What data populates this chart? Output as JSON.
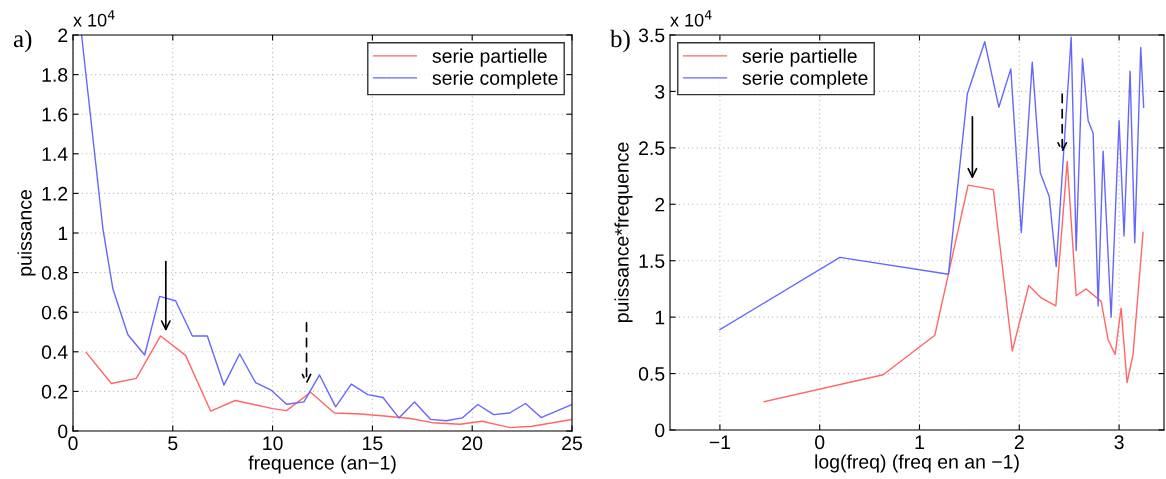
{
  "chart_data": [
    {
      "type": "line",
      "xlabel": "frequence (an−1)",
      "ylabel": "puissance",
      "annotations": [
        "a)",
        "x 10$^{4}$"
      ],
      "xlim": [
        0,
        25
      ],
      "xticks": [
        0,
        5,
        10,
        15,
        20,
        25
      ],
      "ylim": [
        0,
        2
      ],
      "yticks": [
        0,
        0.2,
        0.4,
        0.6,
        0.8,
        1,
        1.2,
        1.4,
        1.6,
        1.8,
        2
      ],
      "grid": true,
      "legend": "top right",
      "line_style": "solid",
      "marker": "none",
      "series": [
        {
          "name": "serie partielle",
          "color": "#ff6666",
          "x": [
            0.67,
            1.92,
            3.17,
            4.39,
            5.64,
            6.9,
            8.13,
            10.0,
            10.7,
            11.9,
            13.1,
            14.4,
            15.6,
            16.9,
            18.0,
            19.4,
            20.5,
            21.9,
            23.0,
            25.0
          ],
          "values": [
            0.396,
            0.24,
            0.266,
            0.48,
            0.382,
            0.1,
            0.154,
            0.113,
            0.103,
            0.196,
            0.091,
            0.086,
            0.076,
            0.063,
            0.042,
            0.034,
            0.049,
            0.017,
            0.024,
            0.058
          ]
        },
        {
          "name": "serie complete",
          "color": "#6666ff",
          "x": [
            0.43,
            1.5,
            2.0,
            2.75,
            3.59,
            4.34,
            5.14,
            5.98,
            6.73,
            7.56,
            8.35,
            9.15,
            9.93,
            10.7,
            11.57,
            12.35,
            13.16,
            13.94,
            14.77,
            15.53,
            16.33,
            17.11,
            17.91,
            18.7,
            19.5,
            20.28,
            21.08,
            21.87,
            22.67,
            23.45,
            25.0
          ],
          "values": [
            2.0,
            1.02,
            0.717,
            0.486,
            0.384,
            0.68,
            0.658,
            0.48,
            0.48,
            0.232,
            0.389,
            0.244,
            0.206,
            0.135,
            0.147,
            0.283,
            0.122,
            0.237,
            0.184,
            0.169,
            0.066,
            0.146,
            0.059,
            0.052,
            0.066,
            0.134,
            0.083,
            0.091,
            0.139,
            0.068,
            0.134
          ]
        }
      ]
    },
    {
      "type": "line",
      "xlabel": "log(freq) (freq en an −1)",
      "ylabel": "puissance*frequence",
      "annotations": [
        "b)",
        "x 10$^{4}$"
      ],
      "xlim": [
        -1.5,
        3.45
      ],
      "xticks": [
        {
          "value": -1,
          "label": "−1"
        },
        0,
        1,
        2,
        3
      ],
      "ylim": [
        0,
        3.5
      ],
      "yticks": [
        0,
        0.5,
        1,
        1.5,
        2,
        2.5,
        3,
        3.5
      ],
      "grid": true,
      "legend": "top left",
      "line_style": "solid",
      "marker": "none",
      "series": [
        {
          "name": "serie partielle",
          "color": "#ff6666",
          "x": [
            -0.556,
            0.636,
            1.154,
            1.487,
            1.74,
            1.93,
            2.095,
            2.22,
            2.366,
            2.48,
            2.57,
            2.67,
            2.82,
            2.89,
            2.96,
            3.02,
            3.08,
            3.14,
            3.24
          ],
          "values": [
            0.25,
            0.49,
            0.84,
            2.17,
            2.13,
            0.7,
            1.28,
            1.17,
            1.1,
            2.38,
            1.19,
            1.25,
            1.14,
            0.8,
            0.67,
            1.08,
            0.42,
            0.67,
            1.75
          ]
        },
        {
          "name": "serie complete",
          "color": "#6666ff",
          "x": [
            -1.0,
            0.202,
            1.29,
            1.48,
            1.654,
            1.795,
            1.915,
            2.02,
            2.13,
            2.21,
            2.3,
            2.37,
            2.52,
            2.57,
            2.633,
            2.69,
            2.74,
            2.79,
            2.84,
            2.92,
            3.0,
            3.05,
            3.11,
            3.157,
            3.217,
            3.246
          ],
          "values": [
            0.89,
            1.53,
            1.38,
            2.98,
            3.44,
            2.86,
            3.2,
            1.75,
            3.26,
            2.28,
            2.07,
            1.45,
            3.48,
            1.59,
            3.29,
            2.74,
            2.63,
            1.1,
            2.47,
            1.0,
            2.74,
            1.72,
            3.18,
            1.66,
            3.39,
            2.86
          ]
        }
      ]
    }
  ]
}
